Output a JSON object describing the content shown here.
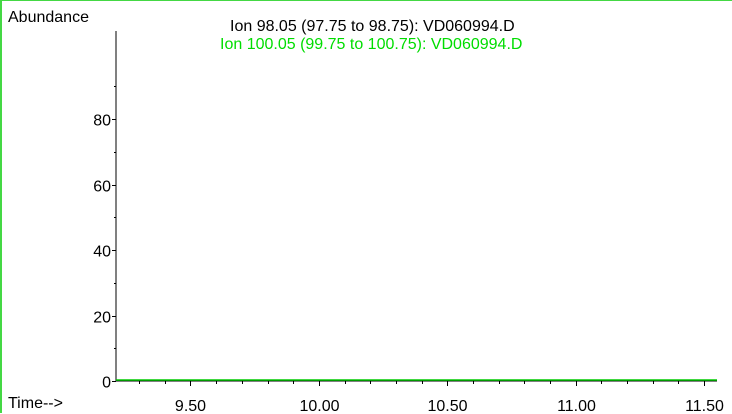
{
  "chart_data": {
    "type": "line",
    "ylabel": "Abundance",
    "xlabel": "Time-->",
    "traces": [
      {
        "name": "Ion  98.05 (97.75 to 98.75): VD060994.D",
        "color": "#000000",
        "values": []
      },
      {
        "name": "Ion 100.05 (99.75 to 100.75): VD060994.D",
        "color": "#00dd00",
        "values": []
      }
    ],
    "x_ticks": [
      "9.50",
      "10.00",
      "10.50",
      "11.00",
      "11.50"
    ],
    "y_ticks": [
      "0",
      "20",
      "40",
      "60",
      "80"
    ],
    "xlim": [
      9.21,
      11.55
    ],
    "ylim": [
      0,
      100
    ],
    "baseline_color": "#00cc00",
    "grid": false
  }
}
